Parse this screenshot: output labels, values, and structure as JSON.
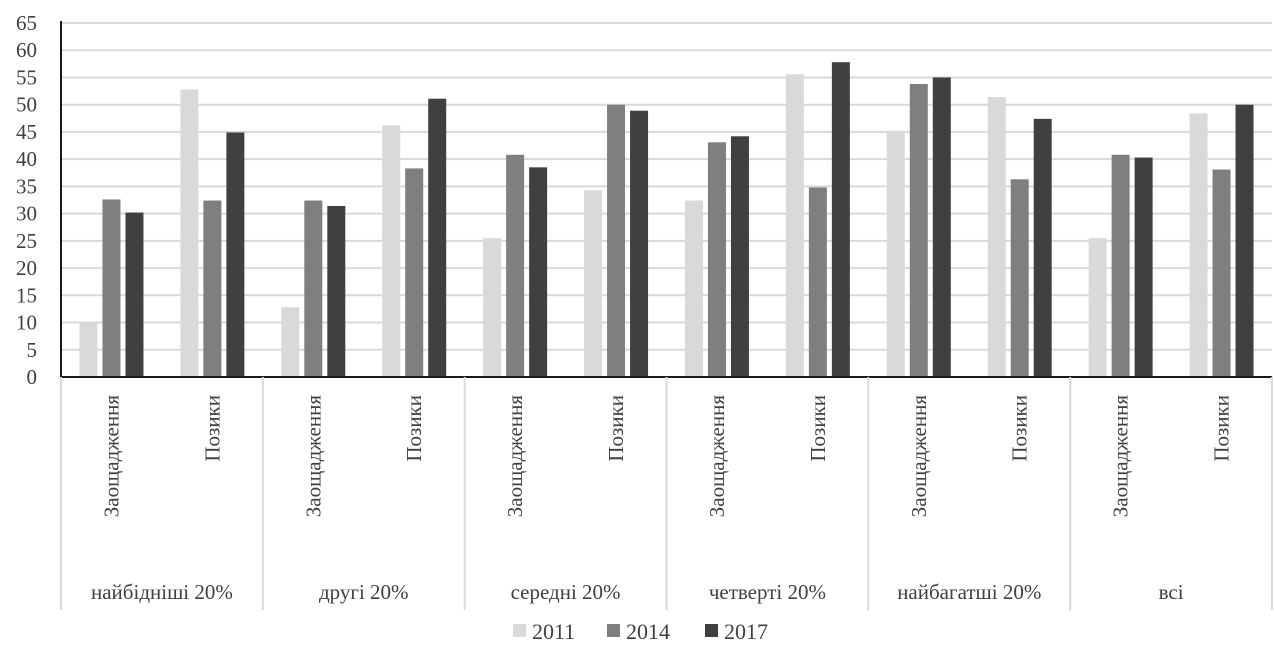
{
  "chart_data": {
    "type": "bar",
    "title": "",
    "xlabel": "",
    "ylabel": "",
    "ylim": [
      0,
      65
    ],
    "ytick_step": 5,
    "grid": true,
    "legend_position": "bottom",
    "groups": [
      {
        "label": "найбідніші 20%",
        "categories": [
          "Заощадження",
          "Позики"
        ]
      },
      {
        "label": "другі 20%",
        "categories": [
          "Заощадження",
          "Позики"
        ]
      },
      {
        "label": "середні 20%",
        "categories": [
          "Заощадження",
          "Позики"
        ]
      },
      {
        "label": "четверті 20%",
        "categories": [
          "Заощадження",
          "Позики"
        ]
      },
      {
        "label": "найбагатші 20%",
        "categories": [
          "Заощадження",
          "Позики"
        ]
      },
      {
        "label": "всі",
        "categories": [
          "Заощадження",
          "Позики"
        ]
      }
    ],
    "series": [
      {
        "name": "2011",
        "color": "#d9d9d9",
        "values": [
          10,
          52.8,
          12.8,
          46.2,
          25.5,
          34.3,
          32.4,
          55.6,
          45.2,
          51.4,
          25.5,
          48.4
        ]
      },
      {
        "name": "2014",
        "color": "#7f7f7f",
        "values": [
          32.6,
          32.4,
          32.4,
          38.3,
          40.8,
          50,
          43.1,
          34.8,
          53.8,
          36.3,
          40.8,
          38.1
        ]
      },
      {
        "name": "2017",
        "color": "#404040",
        "values": [
          30.2,
          44.9,
          31.4,
          51.1,
          38.5,
          48.9,
          44.2,
          57.8,
          55,
          47.4,
          40.3,
          50
        ]
      }
    ]
  }
}
